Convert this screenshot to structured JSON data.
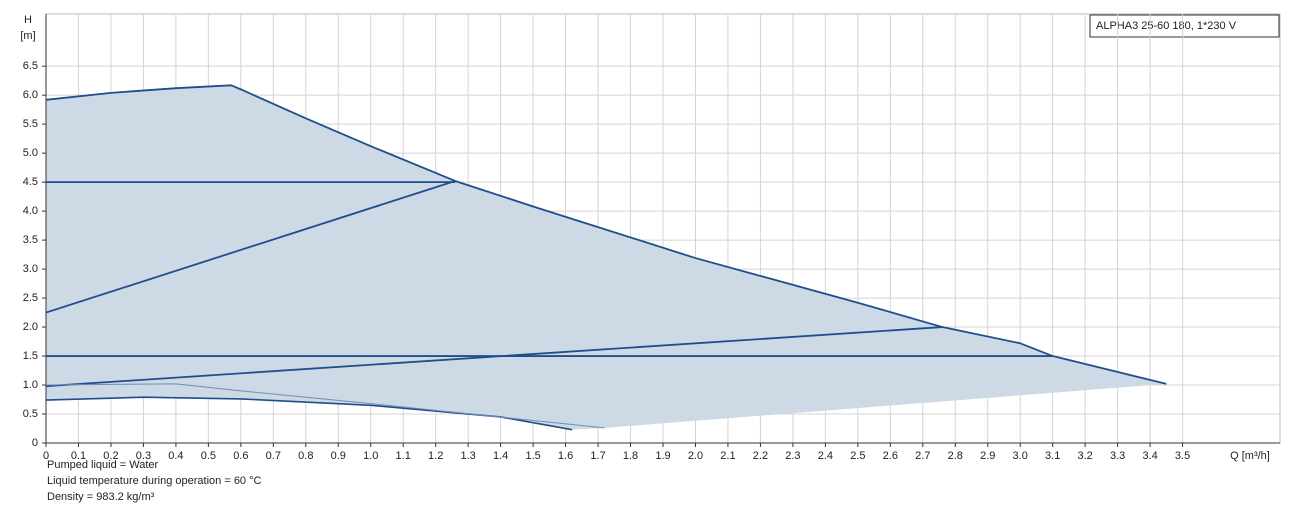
{
  "chart_data": {
    "type": "line",
    "y_label_top": "H",
    "y_label": "[m]",
    "x_label": "Q [m³/h]",
    "legend_text": "ALPHA3 25-60 180, 1*230 V",
    "xlim": [
      0,
      3.8
    ],
    "ylim": [
      0,
      7.4
    ],
    "xticks": [
      0,
      0.1,
      0.2,
      0.3,
      0.4,
      0.5,
      0.6,
      0.7,
      0.8,
      0.9,
      {
        "value": 1,
        "label": "1.0"
      },
      1.1,
      1.2,
      1.3,
      1.4,
      1.5,
      1.6,
      1.7,
      1.8,
      1.9,
      {
        "value": 2,
        "label": "2.0"
      },
      2.1,
      2.2,
      2.3,
      2.4,
      2.5,
      2.6,
      2.7,
      2.8,
      2.9,
      {
        "value": 3,
        "label": "3.0"
      },
      3.1,
      3.2,
      3.3,
      3.4,
      3.5
    ],
    "yticks": [
      0,
      0.5,
      {
        "value": 1,
        "label": "1.0"
      },
      1.5,
      {
        "value": 2,
        "label": "2.0"
      },
      2.5,
      {
        "value": 3,
        "label": "3.0"
      },
      3.5,
      {
        "value": 4,
        "label": "4.0"
      },
      4.5,
      {
        "value": 5,
        "label": "5.0"
      },
      5.5,
      {
        "value": 6,
        "label": "6.0"
      },
      6.5
    ],
    "grid": true,
    "fill_color": "#cdd9e5",
    "series": [
      {
        "color": "#1f4e8c",
        "width": 1.8,
        "x": [
          0,
          0.2,
          0.4,
          0.57,
          0.6,
          0.8,
          1.0,
          1.26,
          1.5,
          2.0,
          2.5,
          2.76,
          3.0,
          3.1,
          3.45
        ],
        "values": [
          5.92,
          6.04,
          6.12,
          6.17,
          6.1,
          5.6,
          5.12,
          4.52,
          4.08,
          3.19,
          2.42,
          2.0,
          1.72,
          1.5,
          1.02
        ]
      },
      {
        "color": "#1f4e8c",
        "width": 1.8,
        "x": [
          0,
          1.26
        ],
        "values": [
          4.5,
          4.5
        ]
      },
      {
        "color": "#1f4e8c",
        "width": 1.8,
        "x": [
          0,
          1.26
        ],
        "values": [
          2.25,
          4.52
        ]
      },
      {
        "color": "#1f4e8c",
        "width": 1.8,
        "x": [
          0,
          3.1
        ],
        "values": [
          1.5,
          1.5
        ]
      },
      {
        "color": "#1f4e8c",
        "width": 1.8,
        "x": [
          0,
          2.76
        ],
        "values": [
          0.98,
          2.0
        ]
      },
      {
        "color": "#1f4e8c",
        "width": 1.6,
        "x": [
          0,
          0.3,
          0.6,
          1.0,
          1.4,
          1.62
        ],
        "values": [
          0.74,
          0.79,
          0.76,
          0.65,
          0.45,
          0.23
        ]
      },
      {
        "color": "#6f8fb5",
        "width": 1,
        "x": [
          0,
          0.4,
          0.6,
          1.0,
          1.72
        ],
        "values": [
          1.0,
          1.02,
          0.9,
          0.68,
          0.26
        ]
      }
    ],
    "notes": [
      "Pumped liquid = Water",
      "Liquid temperature during operation = 60 °C",
      "Density = 983.2 kg/m³"
    ]
  }
}
